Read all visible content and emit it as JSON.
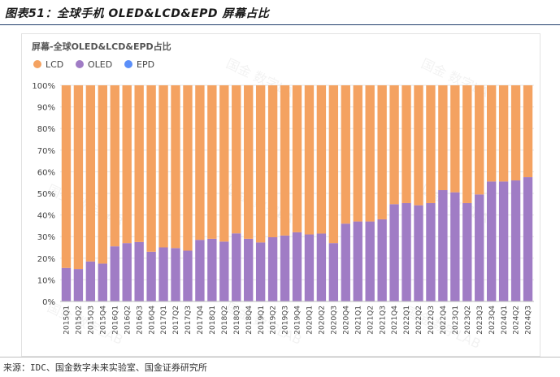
{
  "figure": {
    "title": "图表51：全球手机 OLED&LCD&EPD 屏幕占比",
    "source": "来源：IDC、国金数字未来实验室、国金证券研究所"
  },
  "watermark": "国金 数字LAB",
  "chart_data": {
    "type": "bar",
    "stacked": true,
    "title": "屏幕-全球OLED&LCD&EPD占比",
    "xlabel": "",
    "ylabel": "",
    "ylim": [
      0,
      100
    ],
    "yticks": [
      "0%",
      "10%",
      "20%",
      "30%",
      "40%",
      "50%",
      "60%",
      "70%",
      "80%",
      "90%",
      "100%"
    ],
    "grid": true,
    "legend": "top-left",
    "categories": [
      "2015Q1",
      "2015Q2",
      "2015Q3",
      "2015Q4",
      "2016Q1",
      "2016Q2",
      "2016Q3",
      "2016Q4",
      "2017Q1",
      "2017Q2",
      "2017Q3",
      "2017Q4",
      "2018Q1",
      "2018Q2",
      "2018Q3",
      "2018Q4",
      "2019Q1",
      "2019Q2",
      "2019Q3",
      "2019Q4",
      "2020Q1",
      "2020Q2",
      "2020Q3",
      "2020Q4",
      "2021Q1",
      "2021Q2",
      "2021Q3",
      "2021Q4",
      "2022Q1",
      "2022Q2",
      "2022Q3",
      "2022Q4",
      "2023Q1",
      "2023Q2",
      "2023Q3",
      "2023Q4",
      "2024Q1",
      "2024Q2",
      "2024Q3"
    ],
    "series": [
      {
        "name": "LCD",
        "color": "#f4a261",
        "values": [
          84.5,
          85,
          81.5,
          82.5,
          74.5,
          73,
          72.5,
          77,
          75,
          75.3,
          76.5,
          71.5,
          71,
          72.3,
          68.5,
          71,
          72.7,
          70.3,
          69.5,
          68,
          69,
          68.6,
          73,
          64,
          63,
          63,
          62,
          55,
          54.5,
          55.5,
          54.5,
          48.5,
          49.5,
          54.5,
          50.5,
          44.5,
          44.5,
          44,
          42.5
        ]
      },
      {
        "name": "OLED",
        "color": "#a07cc5",
        "values": [
          15.5,
          15,
          18.5,
          17.5,
          25.5,
          27,
          27.5,
          23,
          25,
          24.7,
          23.5,
          28.5,
          29,
          27.7,
          31.5,
          29,
          27.3,
          29.7,
          30.5,
          32,
          31,
          31.4,
          27,
          36,
          37,
          37,
          38,
          45,
          45.5,
          44.5,
          45.5,
          51.5,
          50.5,
          45.5,
          49.5,
          55.5,
          55.5,
          56,
          57.5
        ]
      },
      {
        "name": "EPD",
        "color": "#5b8ff9",
        "values": [
          0,
          0,
          0,
          0,
          0,
          0,
          0,
          0,
          0,
          0,
          0,
          0,
          0,
          0,
          0,
          0,
          0,
          0,
          0,
          0,
          0,
          0,
          0,
          0,
          0,
          0,
          0,
          0,
          0,
          0,
          0,
          0,
          0,
          0,
          0,
          0,
          0,
          0,
          0
        ]
      }
    ]
  }
}
